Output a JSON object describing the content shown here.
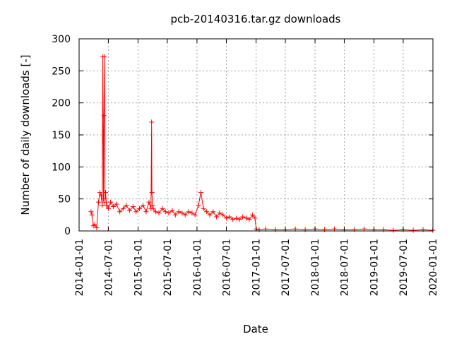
{
  "chart_data": {
    "type": "line",
    "title": "pcb-20140316.tar.gz downloads",
    "xlabel": "Date",
    "ylabel": "Number of daily downloads [-]",
    "x_scale": "time",
    "xlim": [
      "2014-01-01",
      "2020-01-01"
    ],
    "ylim": [
      0,
      300
    ],
    "x_ticks": [
      "2014-01-01",
      "2014-07-01",
      "2015-01-01",
      "2015-07-01",
      "2016-01-01",
      "2016-07-01",
      "2017-01-01",
      "2017-07-01",
      "2018-01-01",
      "2018-07-01",
      "2019-01-01",
      "2019-07-01",
      "2020-01-01"
    ],
    "y_ticks": [
      0,
      50,
      100,
      150,
      200,
      250,
      300
    ],
    "grid": true,
    "legend": "none",
    "marker": "plus",
    "color": "#ff0000",
    "series": [
      {
        "x": [
          "2014-03-16",
          "2014-03-22",
          "2014-03-30",
          "2014-04-08",
          "2014-04-20",
          "2014-05-01",
          "2014-05-10",
          "2014-05-18",
          "2014-05-24",
          "2014-05-28",
          "2014-06-01",
          "2014-06-04",
          "2014-06-07",
          "2014-06-10",
          "2014-06-14",
          "2014-06-20",
          "2014-07-01",
          "2014-07-15",
          "2014-08-01",
          "2014-08-20",
          "2014-09-10",
          "2014-10-01",
          "2014-10-20",
          "2014-11-10",
          "2014-12-01",
          "2014-12-20",
          "2015-01-10",
          "2015-02-01",
          "2015-02-20",
          "2015-03-10",
          "2015-03-22",
          "2015-03-26",
          "2015-03-28",
          "2015-04-01",
          "2015-04-05",
          "2015-04-20",
          "2015-05-10",
          "2015-06-01",
          "2015-06-20",
          "2015-07-10",
          "2015-08-01",
          "2015-08-20",
          "2015-09-10",
          "2015-10-01",
          "2015-10-20",
          "2015-11-10",
          "2015-12-01",
          "2015-12-20",
          "2016-01-10",
          "2016-01-25",
          "2016-02-10",
          "2016-03-01",
          "2016-03-20",
          "2016-04-10",
          "2016-05-01",
          "2016-05-20",
          "2016-06-10",
          "2016-07-01",
          "2016-07-20",
          "2016-08-10",
          "2016-09-01",
          "2016-09-20",
          "2016-10-10",
          "2016-11-01",
          "2016-11-20",
          "2016-12-10",
          "2016-12-25",
          "2017-01-02",
          "2017-01-20",
          "2017-03-01",
          "2017-05-01",
          "2017-07-01",
          "2017-09-01",
          "2017-11-01",
          "2018-01-01",
          "2018-03-01",
          "2018-05-01",
          "2018-07-01",
          "2018-09-01",
          "2018-11-01",
          "2019-01-01",
          "2019-03-01",
          "2019-05-01",
          "2019-07-01",
          "2019-09-01",
          "2019-11-01",
          "2019-12-31"
        ],
        "y": [
          30,
          25,
          8,
          10,
          5,
          45,
          60,
          55,
          40,
          272,
          50,
          180,
          272,
          45,
          60,
          40,
          35,
          45,
          38,
          42,
          30,
          35,
          40,
          32,
          38,
          30,
          35,
          40,
          30,
          45,
          35,
          170,
          60,
          40,
          35,
          30,
          28,
          35,
          30,
          28,
          32,
          25,
          30,
          28,
          25,
          30,
          28,
          25,
          40,
          60,
          35,
          30,
          25,
          30,
          22,
          28,
          25,
          20,
          22,
          18,
          20,
          18,
          22,
          20,
          18,
          25,
          20,
          3,
          2,
          3,
          2,
          2,
          3,
          2,
          3,
          2,
          3,
          2,
          2,
          3,
          2,
          2,
          1,
          2,
          1,
          2,
          1
        ]
      }
    ]
  }
}
